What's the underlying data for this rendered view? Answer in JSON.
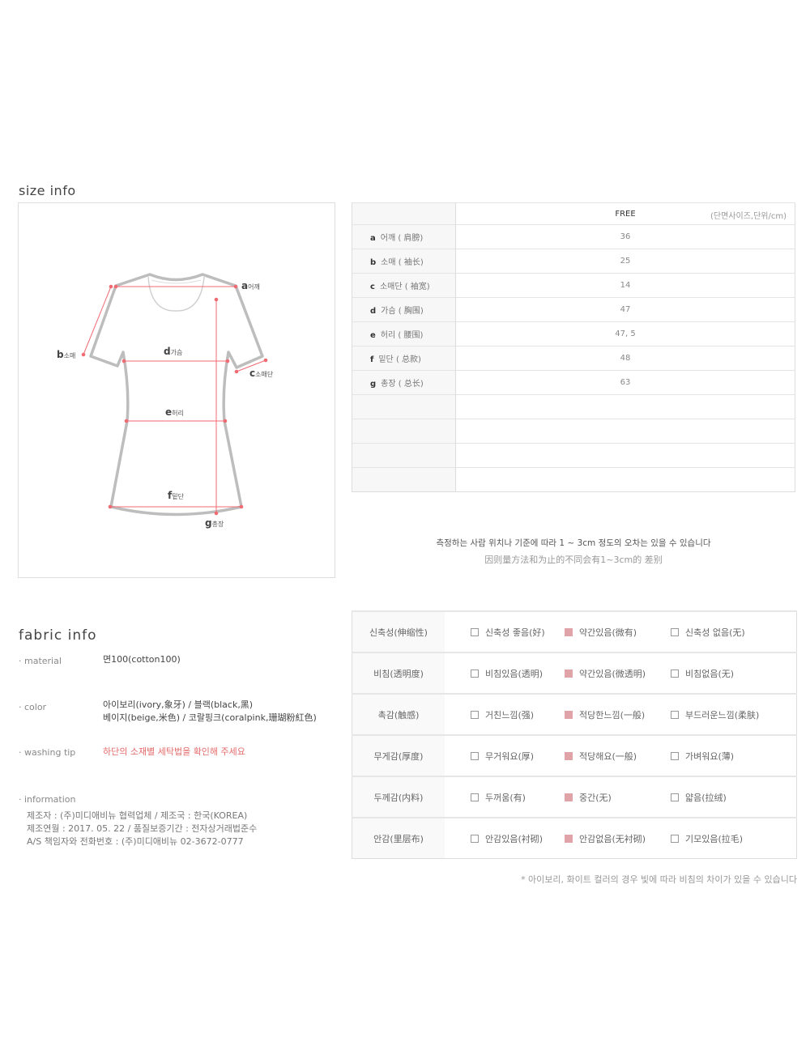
{
  "size_info": {
    "title": "size info",
    "diagram_labels": [
      {
        "letter": "a",
        "name": "어깨"
      },
      {
        "letter": "b",
        "name": "소매"
      },
      {
        "letter": "c",
        "name": "소매단"
      },
      {
        "letter": "d",
        "name": "가슴"
      },
      {
        "letter": "e",
        "name": "허리"
      },
      {
        "letter": "f",
        "name": "밑단"
      },
      {
        "letter": "g",
        "name": "총장"
      }
    ],
    "table": {
      "column_header": "FREE",
      "unit_note": "(단면사이즈,단위/cm)",
      "rows": [
        {
          "letter": "a",
          "label": "어깨 ( 肩膀)",
          "value": "36"
        },
        {
          "letter": "b",
          "label": "소매 ( 袖长)",
          "value": "25"
        },
        {
          "letter": "c",
          "label": "소매단 ( 袖宽)",
          "value": "14"
        },
        {
          "letter": "d",
          "label": "가슴 ( 胸围)",
          "value": "47"
        },
        {
          "letter": "e",
          "label": "허리 ( 腰围)",
          "value": "47, 5"
        },
        {
          "letter": "f",
          "label": "밑단 ( 总款)",
          "value": "48"
        },
        {
          "letter": "g",
          "label": "총장 ( 总长)",
          "value": "63"
        }
      ],
      "empty_rows": 4
    },
    "note_ko": "측정하는 사람 위치나 기준에 따라 1 ~ 3cm 정도의 오차는 있을 수 있습니다",
    "note_cn": "因则量方法和为止的不同会有1~3cm的 差别"
  },
  "fabric_info": {
    "title": "fabric info",
    "material_label": "· material",
    "material_value": "면100(cotton100)",
    "color_label": "· color",
    "color_line1": "아이보리(ivory,象牙) / 블랙(black,黑)",
    "color_line2": "베이지(beige,米色) / 코랄핑크(coralpink,珊瑚粉紅色)",
    "washing_label": "· washing tip",
    "washing_value": "하단의 소재별 세탁법을 확인해 주세요",
    "information_label": "· information",
    "information_lines": [
      "제조자 : (주)미디애비뉴 협력업체  /  제조국 : 한국(KOREA)",
      "제조연월 :  2017. 05. 22  /  품질보증기간 :  전자상거래법준수",
      "A/S 책임자와 전화번호 : (주)미디애비뉴 02-3672-0777"
    ],
    "accent_color": "#e46a6a"
  },
  "fabric_table": {
    "selected_color": "#e0a3a8",
    "rows": [
      {
        "label": "신축성(伸缩性)",
        "options": [
          "신축성 좋음(好)",
          "약간있음(微有)",
          "신축성 없음(无)"
        ],
        "selected": 1
      },
      {
        "label": "비침(透明度)",
        "options": [
          "비침있음(透明)",
          "약간있음(微透明)",
          "비침없음(无)"
        ],
        "selected": 1
      },
      {
        "label": "촉감(触感)",
        "options": [
          "거친느낌(强)",
          "적당한느낌(一般)",
          "부드러운느낌(柔肤)"
        ],
        "selected": 1
      },
      {
        "label": "무게감(厚度)",
        "options": [
          "무거워요(厚)",
          "적당해요(一般)",
          "가벼워요(薄)"
        ],
        "selected": 1
      },
      {
        "label": "두께감(内料)",
        "options": [
          "두꺼움(有)",
          "중간(无)",
          "얇음(拉绒)"
        ],
        "selected": 1
      },
      {
        "label": "안감(里层布)",
        "options": [
          "안감있음(衬砌)",
          "안감없음(无衬砌)",
          "기모있음(拉毛)"
        ],
        "selected": 1
      }
    ],
    "footnote": "* 아이보리, 화이트 컬러의 경우 빛에 따라 비침의 차이가 있을 수 있습니다"
  }
}
